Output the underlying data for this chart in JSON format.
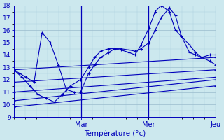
{
  "xlabel": "Température (°c)",
  "bg_color": "#cce8ee",
  "line_color": "#0000bb",
  "grid_major_color": "#99bbcc",
  "grid_minor_color": "#aaccdd",
  "ylim": [
    9,
    18
  ],
  "yticks": [
    9,
    10,
    11,
    12,
    13,
    14,
    15,
    16,
    17,
    18
  ],
  "xlim": [
    0.0,
    1.0
  ],
  "day_ticks": [
    0.333,
    0.667,
    1.0
  ],
  "day_labels": [
    "Mar",
    "Mer",
    "Jeu"
  ],
  "series": [
    {
      "x": [
        0.0,
        0.03,
        0.06,
        0.1,
        0.14,
        0.18,
        0.22,
        0.26,
        0.3,
        0.33,
        0.37,
        0.4,
        0.43,
        0.47,
        0.5,
        0.53,
        0.57,
        0.6,
        0.63,
        0.67,
        0.7,
        0.73,
        0.77,
        0.8,
        0.83,
        0.87,
        0.9,
        0.93,
        0.97,
        1.0
      ],
      "y": [
        12.8,
        12.5,
        12.2,
        11.8,
        15.8,
        15.0,
        13.2,
        11.2,
        11.0,
        11.0,
        12.5,
        13.2,
        13.8,
        14.2,
        14.5,
        14.5,
        14.4,
        14.3,
        14.5,
        15.0,
        16.0,
        17.0,
        17.8,
        17.2,
        15.5,
        14.2,
        14.0,
        13.8,
        14.0,
        14.0
      ]
    },
    {
      "x": [
        0.0,
        0.04,
        0.08,
        0.12,
        0.16,
        0.2,
        0.24,
        0.28,
        0.33,
        0.37,
        0.4,
        0.43,
        0.47,
        0.5,
        0.53,
        0.57,
        0.6,
        0.63,
        0.67,
        0.7,
        0.73,
        0.77,
        0.8,
        0.83,
        0.87,
        0.9,
        0.93,
        0.97,
        1.0
      ],
      "y": [
        12.8,
        12.2,
        11.5,
        10.8,
        10.5,
        10.2,
        10.8,
        11.5,
        12.0,
        13.0,
        13.8,
        14.3,
        14.5,
        14.5,
        14.4,
        14.2,
        14.0,
        14.8,
        16.2,
        17.5,
        18.0,
        17.5,
        16.0,
        15.5,
        14.8,
        14.2,
        13.8,
        13.5,
        13.2
      ]
    },
    {
      "x": [
        0.0,
        1.0
      ],
      "y": [
        12.8,
        13.8
      ]
    },
    {
      "x": [
        0.0,
        1.0
      ],
      "y": [
        11.8,
        12.8
      ]
    },
    {
      "x": [
        0.0,
        1.0
      ],
      "y": [
        11.0,
        12.2
      ]
    },
    {
      "x": [
        0.0,
        1.0
      ],
      "y": [
        10.3,
        12.0
      ]
    },
    {
      "x": [
        0.0,
        1.0
      ],
      "y": [
        9.8,
        11.5
      ]
    }
  ]
}
